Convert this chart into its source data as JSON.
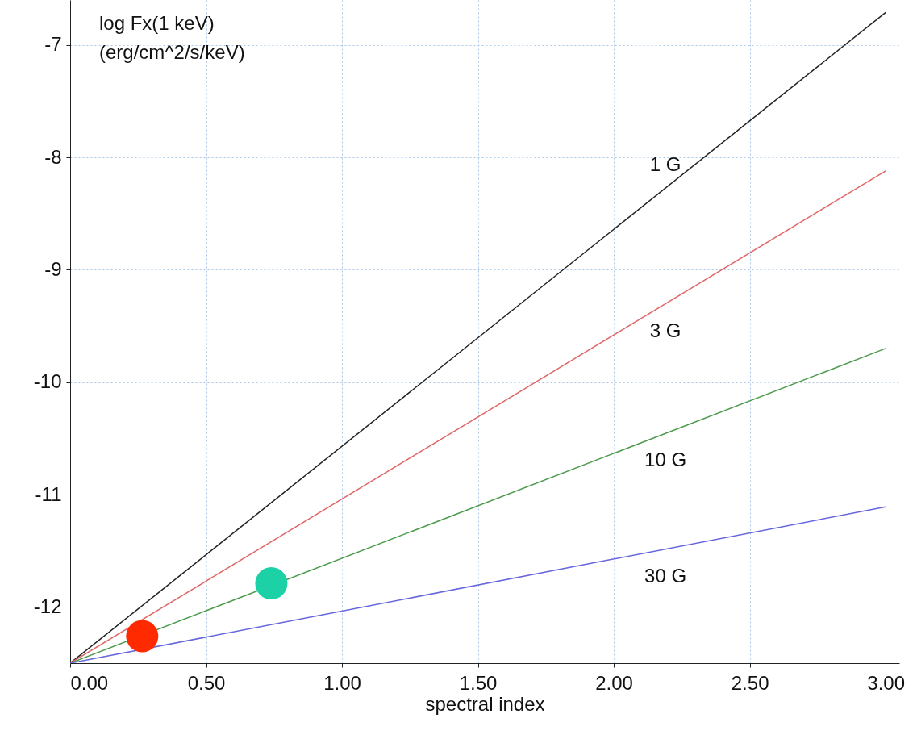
{
  "chart_data": {
    "type": "line",
    "xlabel": "spectral index",
    "ylabel": "log Fx(1 keV)\n(erg/cm^2/s/keV)",
    "xlim": [
      0,
      3.05
    ],
    "ylim": [
      -12.5,
      -6.6
    ],
    "xticks": [
      {
        "value": 0,
        "label": "0.00"
      },
      {
        "value": 0.5,
        "label": "0.50"
      },
      {
        "value": 1,
        "label": "1.00"
      },
      {
        "value": 1.5,
        "label": "1.50"
      },
      {
        "value": 2,
        "label": "2.00"
      },
      {
        "value": 2.5,
        "label": "2.50"
      },
      {
        "value": 3,
        "label": "3.00"
      }
    ],
    "yticks": [
      -12,
      -11,
      -10,
      -9,
      -8,
      -7
    ],
    "grid": true,
    "series": [
      {
        "name": "1 G",
        "color": "#222222",
        "x": [
          0,
          3
        ],
        "values": [
          -12.5,
          -6.71
        ]
      },
      {
        "name": "3 G",
        "color": "#e06666",
        "x": [
          0,
          3
        ],
        "values": [
          -12.5,
          -8.12
        ]
      },
      {
        "name": "10 G",
        "color": "#4c9a4c",
        "x": [
          0,
          3
        ],
        "values": [
          -12.5,
          -9.7
        ]
      },
      {
        "name": "30 G",
        "color": "#6666dd",
        "x": [
          0,
          3
        ],
        "values": [
          -12.5,
          -11.11
        ]
      },
      {
        "type": "scatter",
        "color": "#ff2a00",
        "x": [
          0.265
        ],
        "values": [
          -12.26
        ],
        "marker": "circle"
      },
      {
        "type": "scatter",
        "color": "#1dd1a6",
        "x": [
          0.74
        ],
        "values": [
          -11.79
        ],
        "marker": "circle"
      }
    ]
  }
}
